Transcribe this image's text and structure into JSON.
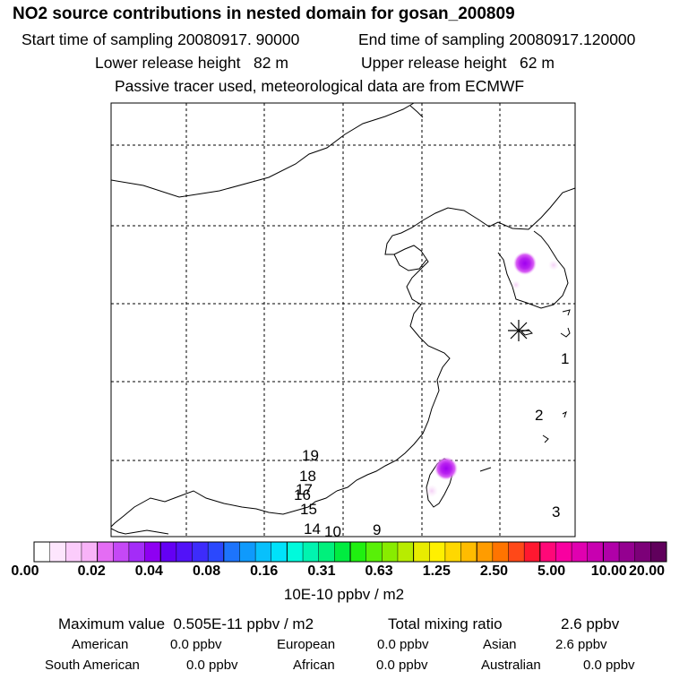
{
  "title": "NO2 source contributions in nested domain for gosan_200809",
  "header": {
    "start_label": "Start time of sampling 20080917. 90000",
    "end_label": "End time of sampling 20080917.120000",
    "lower_label": "Lower release height   82 m",
    "upper_label": "Upper release height   62 m",
    "tracer_note": "Passive tracer used, meteorological data are from ECMWF"
  },
  "map": {
    "trajectory_labels": [
      "1",
      "2",
      "3",
      "9",
      "10",
      "14",
      "15",
      "16",
      "17",
      "18",
      "19"
    ],
    "receptor_symbol": "receptor-star-icon"
  },
  "colorbar": {
    "tick_labels": [
      "0.00",
      "0.02",
      "0.04",
      "0.08",
      "0.16",
      "0.31",
      "0.63",
      "1.25",
      "2.50",
      "5.00",
      "10.00",
      "20.00"
    ],
    "colors": [
      "#ffffff",
      "#fde6fd",
      "#fbccfb",
      "#f8b3f8",
      "#e46cf4",
      "#c548f6",
      "#a42cf8",
      "#8e00f2",
      "#6400f4",
      "#5212f8",
      "#3d2cfb",
      "#2b48fd",
      "#1d74fc",
      "#0f9afc",
      "#08c0fc",
      "#00e2fa",
      "#00fadc",
      "#00f4b0",
      "#00f07c",
      "#00ec40",
      "#20f010",
      "#58f008",
      "#88ec00",
      "#b8ec00",
      "#e8ec00",
      "#fff000",
      "#ffd800",
      "#ffbc00",
      "#ff9c00",
      "#ff7400",
      "#ff4818",
      "#ff1830",
      "#ff0878",
      "#f800a0",
      "#e000b0",
      "#c800b0",
      "#b000a8",
      "#940090",
      "#7c0078",
      "#60005c"
    ],
    "units": "10E-10 ppbv / m2"
  },
  "summary": {
    "max_label": "Maximum value  0.505E-11 ppbv / m2",
    "total_label": "Total mixing ratio",
    "total_value": "2.6 ppbv"
  },
  "regions": [
    {
      "name": "American",
      "value": "0.0 ppbv"
    },
    {
      "name": "European",
      "value": "0.0 ppbv"
    },
    {
      "name": "Asian",
      "value": "2.6 ppbv"
    },
    {
      "name": "South American",
      "value": "0.0 ppbv"
    },
    {
      "name": "African",
      "value": "0.0 ppbv"
    },
    {
      "name": "Australian",
      "value": "0.0 ppbv"
    }
  ]
}
